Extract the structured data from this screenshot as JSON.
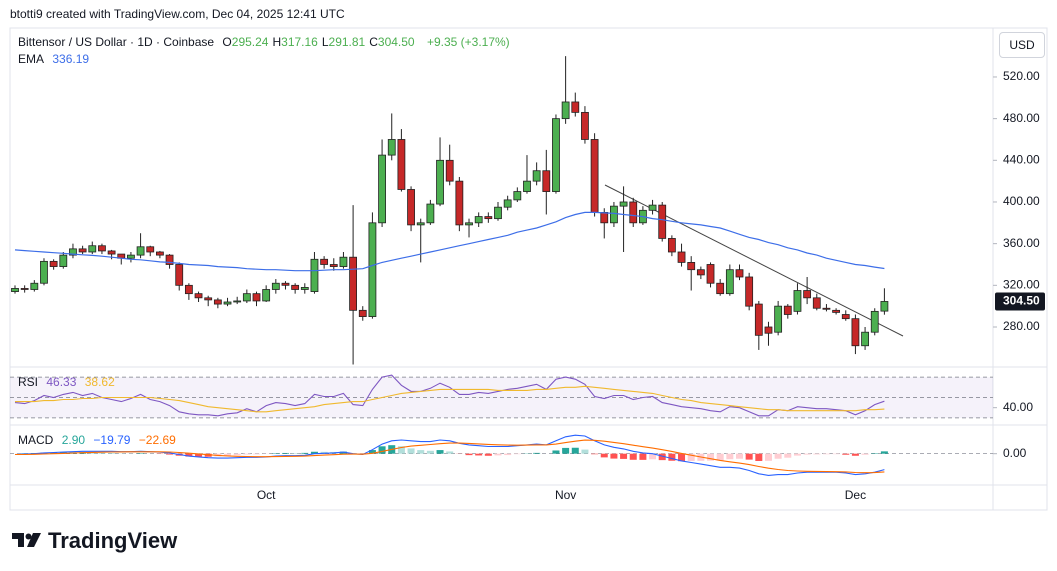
{
  "header": {
    "caption": "btotti9 created with TradingView.com, Dec 04, 2025 12:41 UTC"
  },
  "footer": {
    "brand": "TradingView"
  },
  "chart_data": [
    {
      "type": "candlestick",
      "title": "Bittensor / US Dollar · 1D · Coinbase",
      "ohlc_legend": [
        {
          "label": "O",
          "value": "295.24"
        },
        {
          "label": "H",
          "value": "317.16"
        },
        {
          "label": "L",
          "value": "291.81"
        },
        {
          "label": "C",
          "value": "304.50"
        }
      ],
      "change": "+9.35 (+3.17%)",
      "currency": "USD",
      "categories": [
        null,
        null,
        null,
        null,
        null,
        null,
        null,
        null,
        null,
        null,
        null,
        null,
        null,
        null,
        null,
        null,
        null,
        null,
        null,
        null,
        null,
        null,
        null,
        null,
        null,
        null,
        "Oct",
        null,
        null,
        null,
        null,
        null,
        null,
        null,
        null,
        null,
        null,
        null,
        null,
        null,
        null,
        null,
        null,
        null,
        null,
        null,
        null,
        null,
        null,
        null,
        null,
        null,
        null,
        null,
        null,
        null,
        null,
        "Nov",
        null,
        null,
        null,
        null,
        null,
        null,
        null,
        null,
        null,
        null,
        null,
        null,
        null,
        null,
        null,
        null,
        null,
        null,
        null,
        null,
        null,
        null,
        null,
        null,
        null,
        null,
        null,
        null,
        null,
        "Dec",
        null,
        null,
        null
      ],
      "open": [
        314,
        317,
        316,
        322,
        343,
        338,
        349,
        355,
        352,
        358,
        353,
        350,
        346,
        349,
        357,
        352,
        349,
        340,
        320,
        312,
        308,
        306,
        302,
        304,
        305,
        312,
        305,
        316,
        322,
        320,
        316,
        314,
        345,
        340,
        338,
        347,
        296,
        290,
        380,
        445,
        460,
        412,
        378,
        380,
        398,
        440,
        420,
        378,
        380,
        386,
        384,
        395,
        402,
        410,
        420,
        430,
        410,
        480,
        496,
        486,
        460,
        390,
        380,
        396,
        400,
        380,
        392,
        397,
        365,
        352,
        342,
        335,
        340,
        322,
        312,
        335,
        328,
        302,
        280,
        275,
        300,
        295,
        315,
        308,
        298,
        296,
        292,
        288,
        262,
        275,
        295.24
      ],
      "high": [
        320,
        320,
        325,
        346,
        345,
        352,
        360,
        358,
        362,
        360,
        354,
        350,
        352,
        370,
        358,
        353,
        350,
        342,
        322,
        314,
        310,
        308,
        308,
        309,
        316,
        314,
        320,
        326,
        324,
        322,
        322,
        352,
        348,
        346,
        352,
        397,
        300,
        390,
        460,
        485,
        470,
        415,
        384,
        402,
        462,
        455,
        424,
        384,
        390,
        390,
        400,
        406,
        414,
        445,
        438,
        450,
        484,
        540,
        505,
        492,
        466,
        394,
        400,
        415,
        404,
        396,
        402,
        400,
        368,
        360,
        348,
        338,
        342,
        326,
        340,
        340,
        332,
        305,
        285,
        305,
        302,
        322,
        328,
        312,
        302,
        298,
        296,
        292,
        280,
        298,
        317.16
      ],
      "low": [
        312,
        313,
        314,
        320,
        335,
        336,
        346,
        350,
        350,
        350,
        345,
        340,
        342,
        346,
        348,
        346,
        336,
        315,
        306,
        304,
        300,
        298,
        300,
        302,
        303,
        300,
        304,
        312,
        316,
        312,
        312,
        312,
        336,
        334,
        336,
        244,
        286,
        288,
        376,
        440,
        410,
        372,
        342,
        378,
        396,
        416,
        372,
        366,
        376,
        380,
        382,
        392,
        400,
        408,
        416,
        388,
        408,
        475,
        482,
        456,
        386,
        365,
        376,
        352,
        376,
        378,
        388,
        362,
        348,
        338,
        315,
        326,
        318,
        310,
        310,
        325,
        296,
        258,
        262,
        272,
        288,
        292,
        302,
        296,
        295,
        292,
        286,
        254,
        258,
        272,
        291.81
      ],
      "close": [
        317,
        316,
        322,
        343,
        338,
        349,
        355,
        352,
        358,
        353,
        350,
        346,
        349,
        357,
        352,
        349,
        340,
        320,
        312,
        308,
        306,
        302,
        304,
        305,
        312,
        305,
        316,
        322,
        320,
        316,
        318,
        345,
        340,
        338,
        347,
        296,
        290,
        380,
        445,
        460,
        412,
        378,
        380,
        398,
        440,
        420,
        378,
        380,
        386,
        384,
        395,
        402,
        410,
        420,
        430,
        410,
        480,
        496,
        486,
        460,
        390,
        380,
        396,
        400,
        380,
        392,
        397,
        365,
        352,
        342,
        335,
        330,
        322,
        312,
        335,
        328,
        300,
        272,
        274,
        300,
        292,
        315,
        308,
        298,
        297,
        294,
        288,
        262,
        275,
        295,
        304.5
      ],
      "up_color": "#4caf50",
      "down_color": "#c62828",
      "border_color": "#222222",
      "ema": {
        "name": "EMA",
        "value_label": "336.19",
        "color": "#3d6ee8",
        "values": [
          354,
          353.3,
          352.7,
          352,
          351.3,
          350.7,
          350,
          349.3,
          348.7,
          348,
          347,
          346,
          345,
          344.5,
          343.5,
          342.5,
          342,
          341,
          340,
          339.5,
          339,
          338,
          337.5,
          337,
          336,
          335.5,
          335,
          335,
          334.5,
          334,
          334,
          334,
          334.5,
          335,
          335,
          335.5,
          336,
          339,
          342,
          344,
          346,
          348,
          350,
          352,
          354,
          356,
          358,
          360,
          362,
          364,
          366,
          368,
          371,
          373,
          375,
          378,
          381,
          385,
          388,
          390,
          390,
          389.5,
          389,
          388,
          387,
          386,
          384,
          383,
          381.5,
          380,
          379,
          378,
          376.5,
          375,
          372,
          369,
          366,
          364,
          361,
          359,
          356,
          354,
          351,
          349,
          346,
          344,
          342,
          340,
          339,
          337.5,
          336.19
        ]
      },
      "ylim": [
        241.6,
        567
      ],
      "yticks": [
        {
          "value": 280,
          "label": "280.00"
        },
        {
          "value": 320,
          "label": "320.00"
        },
        {
          "value": 360,
          "label": "360.00"
        },
        {
          "value": 400,
          "label": "400.00"
        },
        {
          "value": 440,
          "label": "440.00"
        },
        {
          "value": 480,
          "label": "480.00"
        },
        {
          "value": 520,
          "label": "520.00"
        }
      ],
      "price_badge": {
        "value": 304.5,
        "label": "304.50"
      },
      "grid": false
    },
    {
      "type": "rsi",
      "name": "RSI",
      "series": [
        {
          "value_label": "46.33",
          "color": "#7e57c2",
          "values": [
            45,
            44,
            47,
            52,
            50,
            53,
            55,
            52,
            54,
            50,
            48,
            46,
            49,
            53,
            48,
            46,
            42,
            36,
            34,
            33,
            33,
            32,
            34,
            35,
            39,
            36,
            42,
            45,
            44,
            42,
            44,
            53,
            51,
            51,
            54,
            43,
            42,
            58,
            70,
            72,
            62,
            56,
            56,
            59,
            64,
            60,
            53,
            53,
            55,
            54,
            56,
            58,
            59,
            61,
            63,
            58,
            68,
            70,
            68,
            63,
            51,
            49,
            52,
            52,
            48,
            50,
            51,
            45,
            43,
            41,
            40,
            39,
            37,
            36,
            41,
            40,
            36,
            32,
            32,
            38,
            37,
            41,
            40,
            39,
            39,
            38,
            37,
            33,
            37,
            43,
            46.33
          ]
        },
        {
          "value_label": "38.62",
          "color": "#f0b92e",
          "values": [
            46,
            46,
            46,
            47,
            47,
            48,
            48,
            49,
            49,
            50,
            50,
            50,
            50,
            50,
            50,
            49,
            48,
            47,
            45,
            43,
            41,
            40,
            39,
            38,
            37,
            36,
            36,
            37,
            38,
            39,
            40,
            41,
            43,
            44,
            45,
            46,
            46,
            48,
            50,
            52,
            54,
            55,
            56,
            57,
            58,
            58,
            58,
            58,
            58,
            58,
            57,
            57,
            57,
            57,
            58,
            58,
            59,
            60,
            60,
            61,
            60,
            59,
            58,
            57,
            56,
            55,
            54,
            52,
            50,
            48,
            47,
            45,
            44,
            43,
            42,
            41,
            40,
            39,
            38,
            38,
            37,
            37,
            37,
            37,
            37,
            37,
            37,
            37,
            38,
            38,
            38.62
          ]
        }
      ],
      "bands": [
        70,
        50,
        30
      ],
      "band_color": "#7e57c2",
      "ylim": [
        23,
        77
      ],
      "yticks": [
        {
          "value": 40,
          "label": "40.00"
        }
      ]
    },
    {
      "type": "macd",
      "name": "MACD",
      "histogram": {
        "value_label": "2.90",
        "colors": [
          "#26a69a",
          "#b2dfdb",
          "#ffcdd2",
          "#ff5252"
        ],
        "values": [
          0,
          0.5,
          0.8,
          1.4,
          1.5,
          1.6,
          1.7,
          1.8,
          1.4,
          1.1,
          0.9,
          0.3,
          0.2,
          0.6,
          0.1,
          -0.4,
          -1.1,
          -2.5,
          -3.6,
          -3.7,
          -3.8,
          -3.4,
          -2.7,
          -1.8,
          -1,
          -0.8,
          -0.2,
          0.6,
          0.9,
          0.7,
          1,
          2.4,
          2.3,
          2.2,
          2.6,
          0.5,
          -0.4,
          4.5,
          9.2,
          10.6,
          9.3,
          6.6,
          4.5,
          3.6,
          4.5,
          2.8,
          -0.2,
          -1.8,
          -2.2,
          -2.6,
          -2.1,
          -1.7,
          -0.6,
          0.3,
          1,
          0,
          4,
          7.2,
          7.4,
          5.1,
          -0.7,
          -4.6,
          -6.1,
          -6.5,
          -7.6,
          -7.7,
          -7,
          -8,
          -8.8,
          -9.4,
          -9.1,
          -8.9,
          -8.7,
          -8.6,
          -6.9,
          -6.3,
          -7.4,
          -9.1,
          -8.9,
          -6.3,
          -5,
          -2.4,
          -1.1,
          -0.9,
          -0.7,
          -0.6,
          -1.3,
          -2.6,
          -1.3,
          0.6,
          2.9
        ]
      },
      "series": [
        {
          "value_label": "−19.79",
          "color": "#2962ff",
          "values": [
            -1,
            -0.5,
            0,
            1,
            1.5,
            2,
            2.5,
            3,
            3,
            3,
            3,
            2.5,
            2.5,
            3,
            2.5,
            2,
            1,
            -1,
            -3,
            -4,
            -5,
            -5.5,
            -5.5,
            -5,
            -4.5,
            -4.5,
            -4,
            -3,
            -2.5,
            -2.5,
            -2,
            0,
            0.5,
            1,
            2,
            0,
            -1,
            5,
            12,
            16,
            17,
            16,
            15,
            15,
            17,
            16,
            13,
            11,
            10,
            9,
            9,
            9,
            10,
            11,
            12,
            11,
            16,
            21,
            23,
            22,
            16,
            11,
            8,
            6,
            3,
            1,
            0,
            -3,
            -6,
            -9,
            -11,
            -13,
            -15,
            -17,
            -17,
            -18,
            -21,
            -25,
            -27,
            -26,
            -26,
            -24,
            -23,
            -23,
            -23,
            -23,
            -24,
            -26,
            -25,
            -23,
            -19.79
          ]
        },
        {
          "value_label": "−22.69",
          "color": "#ff6d00",
          "values": [
            -1,
            -1,
            -0.8,
            -0.4,
            0,
            0.4,
            0.8,
            1.2,
            1.6,
            1.9,
            2.1,
            2.2,
            2.3,
            2.4,
            2.4,
            2.4,
            2.1,
            1.5,
            0.6,
            -0.3,
            -1.2,
            -2.1,
            -2.8,
            -3.2,
            -3.5,
            -3.7,
            -3.8,
            -3.6,
            -3.4,
            -3.2,
            -3,
            -2.4,
            -1.8,
            -1.2,
            -0.6,
            -0.5,
            -0.6,
            0.5,
            2.8,
            5.4,
            7.7,
            9.4,
            10.5,
            11.4,
            12.5,
            13.2,
            13.2,
            12.8,
            12.2,
            11.6,
            11.1,
            10.7,
            10.6,
            10.7,
            11,
            11,
            12,
            13.8,
            15.6,
            16.9,
            16.7,
            15.6,
            14.1,
            12.5,
            10.6,
            8.7,
            7,
            5,
            2.8,
            0.4,
            -1.9,
            -4.1,
            -6.3,
            -8.4,
            -10.1,
            -11.7,
            -13.6,
            -15.9,
            -18.1,
            -19.7,
            -21,
            -21.6,
            -21.9,
            -22.1,
            -22.3,
            -22.4,
            -22.7,
            -23.4,
            -23.7,
            -23.6,
            -22.69
          ]
        }
      ],
      "ylim": [
        -39,
        32
      ],
      "yticks": [
        {
          "value": 0,
          "label": "0.00"
        }
      ]
    }
  ]
}
